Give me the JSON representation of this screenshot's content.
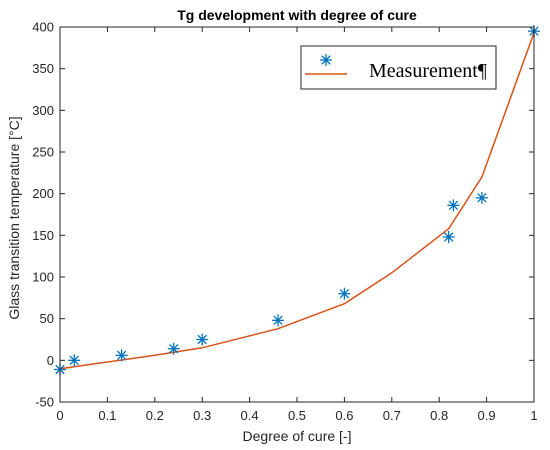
{
  "chart_data": {
    "type": "line",
    "title": "Tg development with degree of cure",
    "xlabel": "Degree of cure [-]",
    "ylabel": "Glass transition temperature [°C]",
    "xlim": [
      0,
      1
    ],
    "ylim": [
      -50,
      400
    ],
    "xticks": [
      "0",
      "0.1",
      "0.2",
      "0.3",
      "0.4",
      "0.5",
      "0.6",
      "0.7",
      "0.8",
      "0.9",
      "1"
    ],
    "yticks": [
      "-50",
      "0",
      "50",
      "100",
      "150",
      "200",
      "250",
      "300",
      "350",
      "400"
    ],
    "grid": false,
    "legend_position": "top-right",
    "series": [
      {
        "name": "Measurement¶",
        "mark": "asterisk",
        "color": "#0072BD",
        "x": [
          0.0,
          0.03,
          0.13,
          0.24,
          0.3,
          0.46,
          0.6,
          0.82,
          0.83,
          0.89,
          1.0
        ],
        "y": [
          -11,
          0,
          6,
          14,
          25,
          48,
          80,
          148,
          186,
          195,
          395
        ]
      },
      {
        "mark": "line",
        "color": "#D95319",
        "x": [
          0.0,
          0.1,
          0.2,
          0.3,
          0.46,
          0.6,
          0.7,
          0.82,
          0.89,
          1.0
        ],
        "y": [
          -10,
          -2,
          6,
          15,
          38,
          68,
          105,
          158,
          220,
          393
        ]
      }
    ]
  }
}
